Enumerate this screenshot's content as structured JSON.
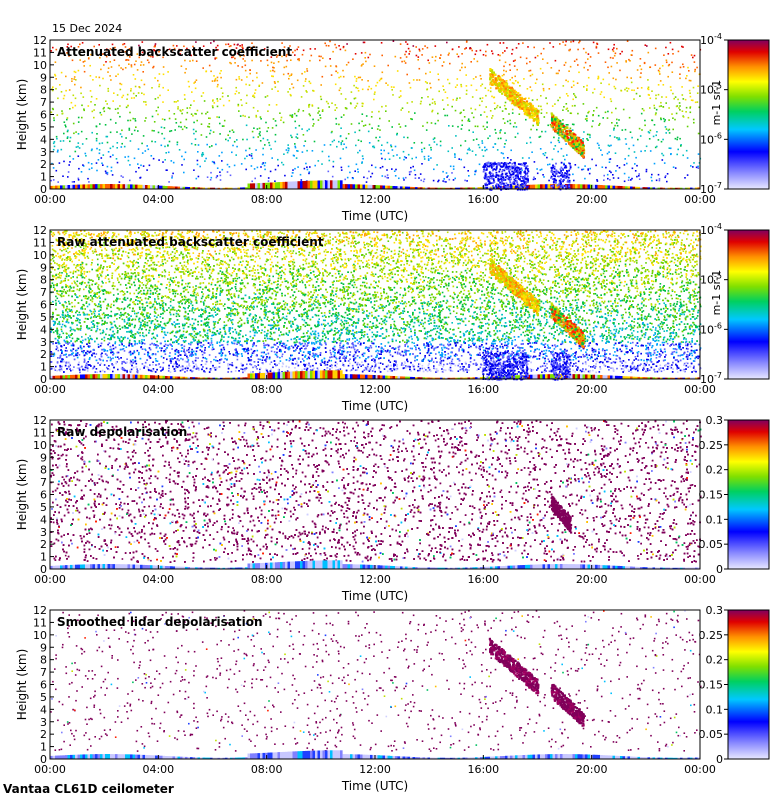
{
  "date_label": "15 Dec 2024",
  "footer": "Vantaa CL61D ceilometer",
  "chart_data": [
    {
      "type": "heatmap",
      "title": "Attenuated backscatter coefficient",
      "xlabel": "Time (UTC)",
      "ylabel": "Height (km)",
      "x_ticks": [
        "00:00",
        "04:00",
        "08:00",
        "12:00",
        "16:00",
        "20:00",
        "00:00"
      ],
      "y_ticks": [
        0,
        1,
        2,
        3,
        4,
        5,
        6,
        7,
        8,
        9,
        10,
        11,
        12
      ],
      "ylim": [
        0,
        12
      ],
      "colorbar": {
        "scale": "log",
        "range": [
          1e-07,
          0.0001
        ],
        "unit": "m-1 sr-1",
        "tick_labels": [
          "10-7",
          "10-6",
          "10-5",
          "10-4"
        ]
      },
      "features": [
        {
          "name": "boundary layer",
          "time_range": [
            "00:00",
            "24:00"
          ],
          "height_km": [
            0,
            0.5
          ]
        },
        {
          "name": "high cloud",
          "time_range": [
            "16:10",
            "18:10"
          ],
          "height_km": [
            5.5,
            9.4
          ]
        },
        {
          "name": "mid cloud",
          "time_range": [
            "18:30",
            "19:45"
          ],
          "height_km": [
            3.0,
            6.0
          ]
        },
        {
          "name": "precipitation",
          "time_range": [
            "16:00",
            "19:00"
          ],
          "height_km": [
            0,
            2.2
          ]
        }
      ]
    },
    {
      "type": "heatmap",
      "title": "Raw attenuated backscatter coefficient",
      "xlabel": "Time (UTC)",
      "ylabel": "Height (km)",
      "x_ticks": [
        "00:00",
        "04:00",
        "08:00",
        "12:00",
        "16:00",
        "20:00",
        "00:00"
      ],
      "y_ticks": [
        0,
        1,
        2,
        3,
        4,
        5,
        6,
        7,
        8,
        9,
        10,
        11,
        12
      ],
      "ylim": [
        0,
        12
      ],
      "colorbar": {
        "scale": "log",
        "range": [
          1e-07,
          0.0001
        ],
        "unit": "m-1 sr-1",
        "tick_labels": [
          "10-7",
          "10-6",
          "10-5",
          "10-4"
        ]
      }
    },
    {
      "type": "heatmap",
      "title": "Raw depolarisation",
      "xlabel": "Time (UTC)",
      "ylabel": "Height (km)",
      "x_ticks": [
        "00:00",
        "04:00",
        "08:00",
        "12:00",
        "16:00",
        "20:00",
        "00:00"
      ],
      "y_ticks": [
        0,
        1,
        2,
        3,
        4,
        5,
        6,
        7,
        8,
        9,
        10,
        11,
        12
      ],
      "ylim": [
        0,
        12
      ],
      "colorbar": {
        "scale": "linear",
        "range": [
          0,
          0.3
        ],
        "tick_labels": [
          "0",
          "0.05",
          "0.1",
          "0.15",
          "0.2",
          "0.25",
          "0.3"
        ]
      }
    },
    {
      "type": "heatmap",
      "title": "Smoothed lidar depolarisation",
      "xlabel": "Time (UTC)",
      "ylabel": "Height (km)",
      "x_ticks": [
        "00:00",
        "04:00",
        "08:00",
        "12:00",
        "16:00",
        "20:00",
        "00:00"
      ],
      "y_ticks": [
        0,
        1,
        2,
        3,
        4,
        5,
        6,
        7,
        8,
        9,
        10,
        11,
        12
      ],
      "ylim": [
        0,
        12
      ],
      "colorbar": {
        "scale": "linear",
        "range": [
          0,
          0.3
        ],
        "tick_labels": [
          "0",
          "0.05",
          "0.1",
          "0.15",
          "0.2",
          "0.25",
          "0.3"
        ]
      }
    }
  ]
}
